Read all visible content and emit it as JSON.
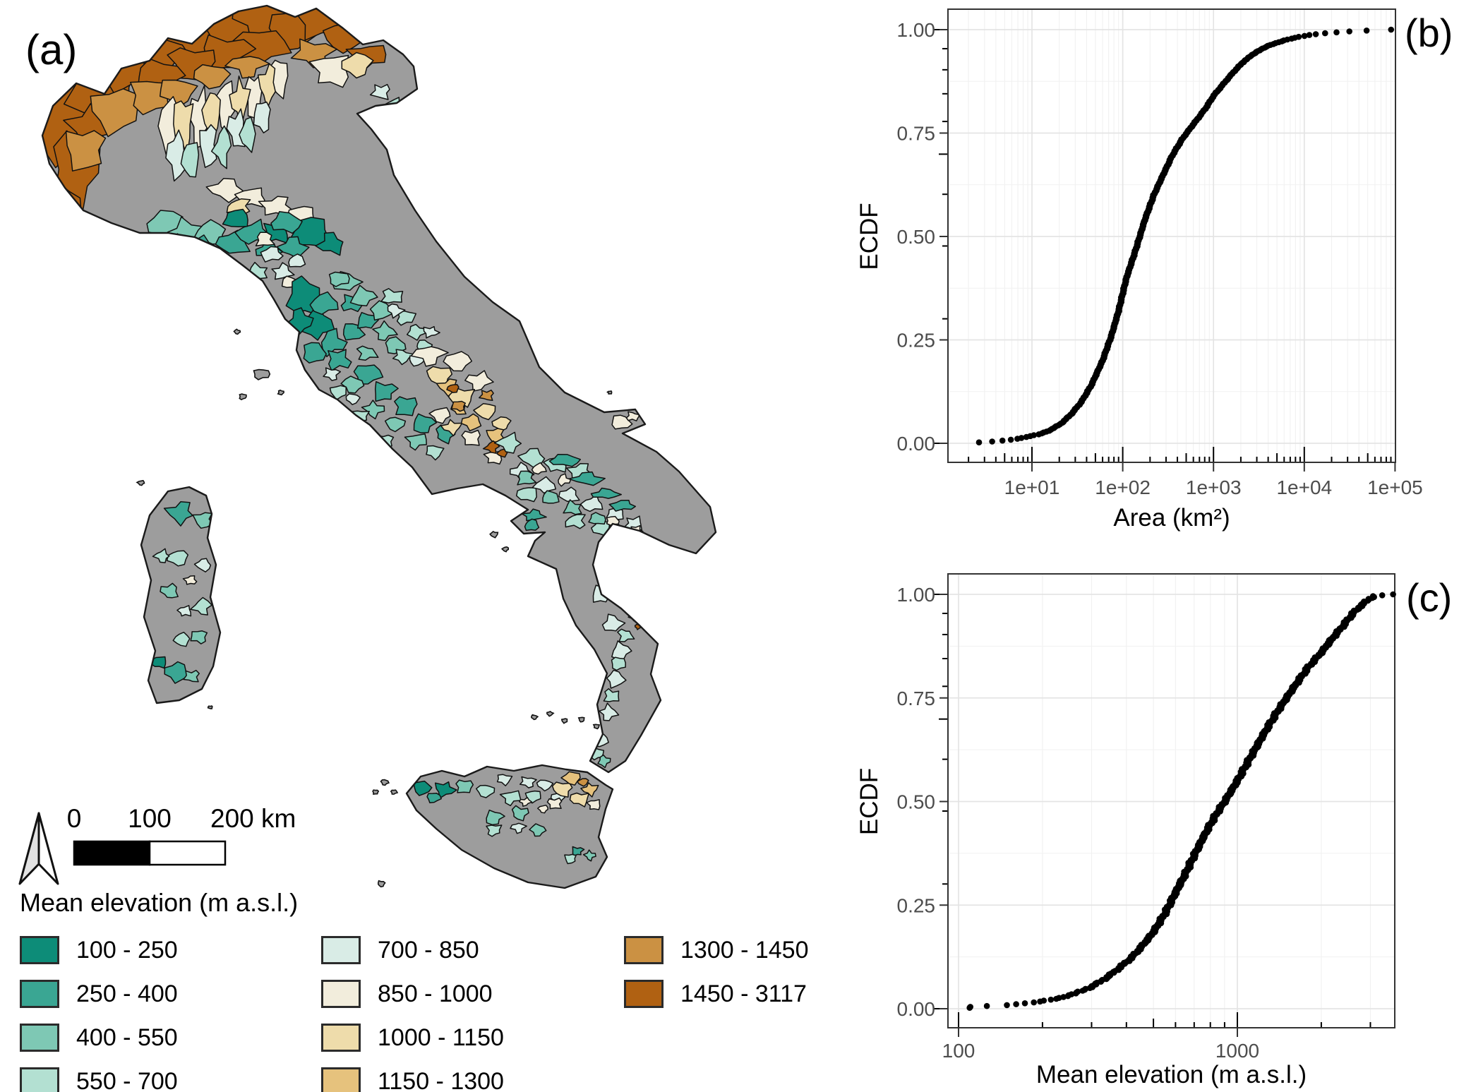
{
  "figure": {
    "panel_labels": {
      "a": "(a)",
      "b": "(b)",
      "c": "(c)"
    },
    "background_color": "#ffffff"
  },
  "map": {
    "legend_title": "Mean elevation (m a.s.l.)",
    "classes": [
      {
        "label": "100 - 250",
        "color": "#0d8c78"
      },
      {
        "label": "250 - 400",
        "color": "#3aa693"
      },
      {
        "label": "400 - 550",
        "color": "#7ec8b4"
      },
      {
        "label": "550 - 700",
        "color": "#b3e0d2"
      },
      {
        "label": "700 - 850",
        "color": "#d9ece6"
      },
      {
        "label": "850 - 1000",
        "color": "#f2eddc"
      },
      {
        "label": "1000 - 1150",
        "color": "#eedcab"
      },
      {
        "label": "1150 - 1300",
        "color": "#e6c27d"
      },
      {
        "label": "1300 - 1450",
        "color": "#cb9143"
      },
      {
        "label": "1450 - 3117",
        "color": "#b06112"
      }
    ],
    "land_color": "#9d9d9d",
    "outline_color": "#1a1a1a",
    "sea_color": "#ffffff",
    "north_arrow_icon": "north-arrow",
    "scale_bar": {
      "labels": [
        "0",
        "100",
        "200 km"
      ],
      "bar_fill_left": "#000000",
      "bar_fill_right": "#ffffff"
    }
  },
  "chart_data": [
    {
      "id": "ecdf-area",
      "type": "scatter",
      "title": "",
      "xlabel": "Area (km²)",
      "ylabel": "ECDF",
      "x_scale": "log10",
      "xlim": [
        1.2,
        100000
      ],
      "ylim": [
        0,
        1
      ],
      "x_ticks": [
        10,
        100,
        1000,
        10000,
        100000
      ],
      "x_tick_labels": [
        "1e+01",
        "1e+02",
        "1e+03",
        "1e+04",
        "1e+05"
      ],
      "y_ticks": [
        0,
        0.25,
        0.5,
        0.75,
        1
      ],
      "y_tick_labels": [
        "0.00",
        "0.25",
        "0.50",
        "0.75",
        "1.00"
      ],
      "grid": "major+minor",
      "legend_position": "none",
      "point_color": "#000000",
      "ecdf_quantiles": [
        [
          2.5,
          0.002
        ],
        [
          3.5,
          0.004
        ],
        [
          5,
          0.007
        ],
        [
          7,
          0.011
        ],
        [
          9,
          0.016
        ],
        [
          12,
          0.022
        ],
        [
          16,
          0.032
        ],
        [
          21,
          0.048
        ],
        [
          27,
          0.07
        ],
        [
          35,
          0.1
        ],
        [
          45,
          0.14
        ],
        [
          60,
          0.2
        ],
        [
          75,
          0.26
        ],
        [
          90,
          0.32
        ],
        [
          110,
          0.4
        ],
        [
          140,
          0.47
        ],
        [
          175,
          0.54
        ],
        [
          220,
          0.6
        ],
        [
          280,
          0.65
        ],
        [
          350,
          0.695
        ],
        [
          450,
          0.735
        ],
        [
          570,
          0.765
        ],
        [
          700,
          0.79
        ],
        [
          850,
          0.815
        ],
        [
          1000,
          0.84
        ],
        [
          1300,
          0.87
        ],
        [
          1700,
          0.9
        ],
        [
          2200,
          0.925
        ],
        [
          3000,
          0.947
        ],
        [
          4200,
          0.963
        ],
        [
          6000,
          0.974
        ],
        [
          8500,
          0.982
        ],
        [
          12000,
          0.988
        ],
        [
          18000,
          0.992
        ],
        [
          28000,
          0.995
        ],
        [
          45000,
          0.9975
        ],
        [
          65000,
          0.999
        ],
        [
          90000,
          1.0
        ]
      ]
    },
    {
      "id": "ecdf-elevation",
      "type": "scatter",
      "title": "",
      "xlabel": "Mean elevation (m a.s.l.)",
      "ylabel": "ECDF",
      "x_scale": "log10",
      "xlim": [
        93,
        3700
      ],
      "ylim": [
        0,
        1
      ],
      "x_ticks": [
        100,
        1000
      ],
      "x_tick_labels": [
        "100",
        "1000"
      ],
      "y_ticks": [
        0,
        0.25,
        0.5,
        0.75,
        1
      ],
      "y_tick_labels": [
        "0.00",
        "0.25",
        "0.50",
        "0.75",
        "1.00"
      ],
      "grid": "major+minor",
      "legend_position": "none",
      "point_color": "#000000",
      "ecdf_quantiles": [
        [
          108,
          0.004
        ],
        [
          130,
          0.007
        ],
        [
          150,
          0.009
        ],
        [
          175,
          0.013
        ],
        [
          200,
          0.018
        ],
        [
          230,
          0.026
        ],
        [
          260,
          0.036
        ],
        [
          300,
          0.053
        ],
        [
          340,
          0.075
        ],
        [
          380,
          0.1
        ],
        [
          420,
          0.125
        ],
        [
          460,
          0.155
        ],
        [
          500,
          0.185
        ],
        [
          550,
          0.23
        ],
        [
          600,
          0.28
        ],
        [
          650,
          0.325
        ],
        [
          700,
          0.37
        ],
        [
          750,
          0.41
        ],
        [
          800,
          0.445
        ],
        [
          850,
          0.475
        ],
        [
          900,
          0.5
        ],
        [
          1000,
          0.55
        ],
        [
          1100,
          0.6
        ],
        [
          1200,
          0.645
        ],
        [
          1300,
          0.685
        ],
        [
          1400,
          0.72
        ],
        [
          1500,
          0.75
        ],
        [
          1650,
          0.79
        ],
        [
          1800,
          0.825
        ],
        [
          2000,
          0.86
        ],
        [
          2200,
          0.895
        ],
        [
          2400,
          0.925
        ],
        [
          2600,
          0.955
        ],
        [
          2800,
          0.975
        ],
        [
          2950,
          0.988
        ],
        [
          3100,
          0.996
        ],
        [
          3600,
          1.0
        ]
      ]
    }
  ]
}
